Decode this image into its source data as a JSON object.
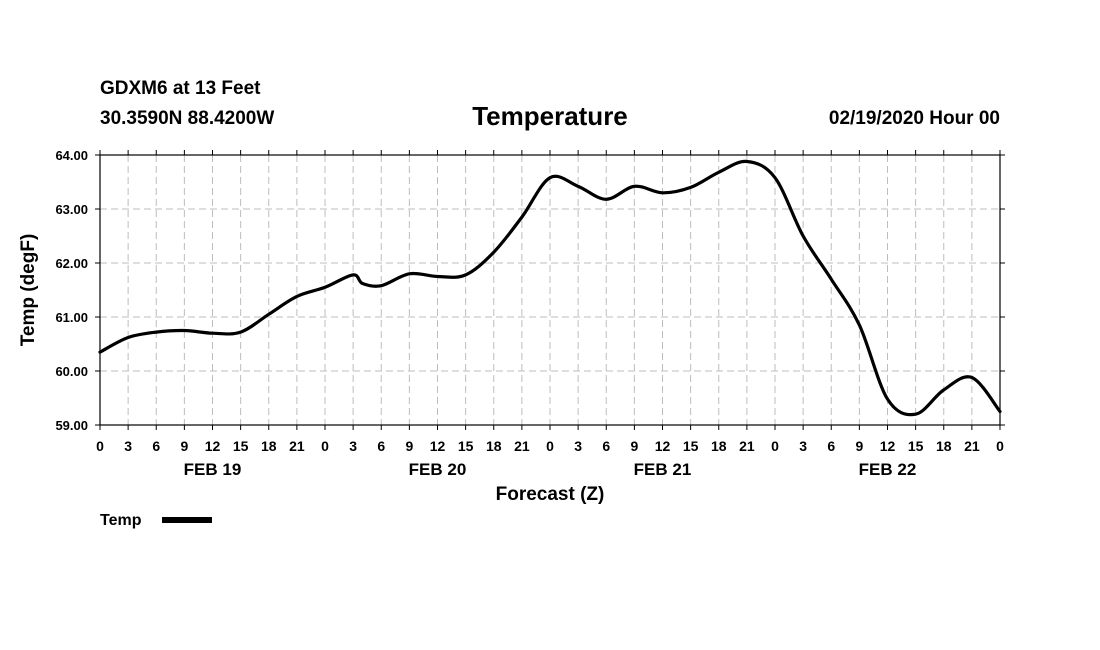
{
  "header": {
    "station": "GDXM6 at 13 Feet",
    "location": "30.3590N 88.4200W",
    "title": "Temperature",
    "datetime": "02/19/2020 Hour 00"
  },
  "legend": {
    "label": "Temp"
  },
  "chart_data": {
    "type": "line",
    "title": "Temperature",
    "xlabel": "Forecast (Z)",
    "ylabel": "Temp (degF)",
    "ylim": [
      59.0,
      64.0
    ],
    "yticks": [
      "59.00",
      "60.00",
      "61.00",
      "62.00",
      "63.00",
      "64.00"
    ],
    "xlim_hours": [
      0,
      96
    ],
    "xtick_labels": [
      "0",
      "3",
      "6",
      "9",
      "12",
      "15",
      "18",
      "21",
      "0",
      "3",
      "6",
      "9",
      "12",
      "15",
      "18",
      "21",
      "0",
      "3",
      "6",
      "9",
      "12",
      "15",
      "18",
      "21",
      "0",
      "3",
      "6",
      "9",
      "12",
      "15",
      "18",
      "21",
      "0"
    ],
    "day_labels": [
      {
        "hour": 12,
        "label": "FEB 19"
      },
      {
        "hour": 36,
        "label": "FEB 20"
      },
      {
        "hour": 60,
        "label": "FEB 21"
      },
      {
        "hour": 84,
        "label": "FEB 22"
      }
    ],
    "grid": true,
    "legend_position": "bottom-left",
    "series": [
      {
        "name": "Temp",
        "color": "#000000",
        "x": [
          0,
          3,
          6,
          9,
          12,
          15,
          18,
          21,
          24,
          27,
          28,
          30,
          33,
          36,
          39,
          42,
          45,
          48,
          51,
          54,
          57,
          60,
          63,
          66,
          69,
          72,
          75,
          78,
          81,
          84,
          87,
          90,
          93,
          96
        ],
        "values": [
          60.35,
          60.62,
          60.72,
          60.75,
          60.7,
          60.72,
          61.05,
          61.38,
          61.55,
          61.78,
          61.62,
          61.58,
          61.8,
          61.75,
          61.78,
          62.2,
          62.85,
          63.58,
          63.42,
          63.18,
          63.42,
          63.3,
          63.4,
          63.68,
          63.88,
          63.58,
          62.5,
          61.7,
          60.85,
          59.48,
          59.2,
          59.65,
          59.88,
          59.25
        ]
      }
    ]
  }
}
